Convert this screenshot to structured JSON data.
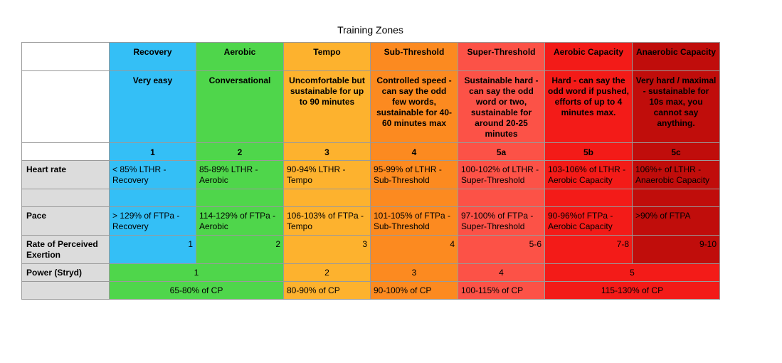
{
  "title": "Training Zones",
  "zones": [
    {
      "name": "Recovery",
      "description": "Very easy",
      "zone": "1",
      "heart_rate": "< 85% LTHR - Recovery",
      "pace": "> 129% of FTPa - Recovery",
      "rpe": "1",
      "color": "#34bff6"
    },
    {
      "name": "Aerobic",
      "description": "Conversational",
      "zone": "2",
      "heart_rate": "85-89% LTHR - Aerobic",
      "pace": "114-129% of FTPa - Aerobic",
      "rpe": "2",
      "color": "#4fd64b"
    },
    {
      "name": "Tempo",
      "description": "Uncomfortable but sustainable for up to 90 minutes",
      "zone": "3",
      "heart_rate": "90-94% LTHR - Tempo",
      "pace": "106-103% of FTPa - Tempo",
      "rpe": "3",
      "color": "#fdb22e"
    },
    {
      "name": "Sub-Threshold",
      "description": "Controlled speed - can say the odd few words, sustainable for 40-60 minutes max",
      "zone": "4",
      "heart_rate": "95-99% of LTHR - Sub-Threshold",
      "pace": "101-105% of FTPa - Sub-Threshold",
      "rpe": "4",
      "color": "#fc8a20"
    },
    {
      "name": "Super-Threshold",
      "description": "Sustainable hard - can say the odd word or two, sustainable for around 20-25 minutes",
      "zone": "5a",
      "heart_rate": "100-102% of LTHR - Super-Threshold",
      "pace": "97-100% of FTPa - Super-Threshold",
      "rpe": "5-6",
      "color": "#fc5247"
    },
    {
      "name": "Aerobic Capacity",
      "description": "Hard - can say the odd word if pushed, efforts of up to 4 minutes max.",
      "zone": "5b",
      "heart_rate": "103-106% of LTHR - Aerobic Capacity",
      "pace": "90-96%of FTPa - Aerobic Capacity",
      "rpe": "7-8",
      "color": "#f31b18"
    },
    {
      "name": "Anaerobic Capacity",
      "description": "Very hard / maximal - sustainable for 10s max, you cannot say anything.",
      "zone": "5c",
      "heart_rate": "106%+ of LTHR - Anaerobic Capacity",
      "pace": ">90% of FTPA",
      "rpe": "9-10",
      "color": "#c00d0b"
    }
  ],
  "row_labels": {
    "heart_rate": "Heart rate",
    "pace": "Pace",
    "rpe": "Rate of Perceived Exertion",
    "power": "Power (Stryd)"
  },
  "power": [
    {
      "zone": "1",
      "range": "65-80% of CP"
    },
    {
      "zone": "2",
      "range": "80-90% of CP"
    },
    {
      "zone": "3",
      "range": "90-100% of CP"
    },
    {
      "zone": "4",
      "range": "100-115% of CP"
    },
    {
      "zone": "5",
      "range": "115-130% of CP"
    }
  ]
}
